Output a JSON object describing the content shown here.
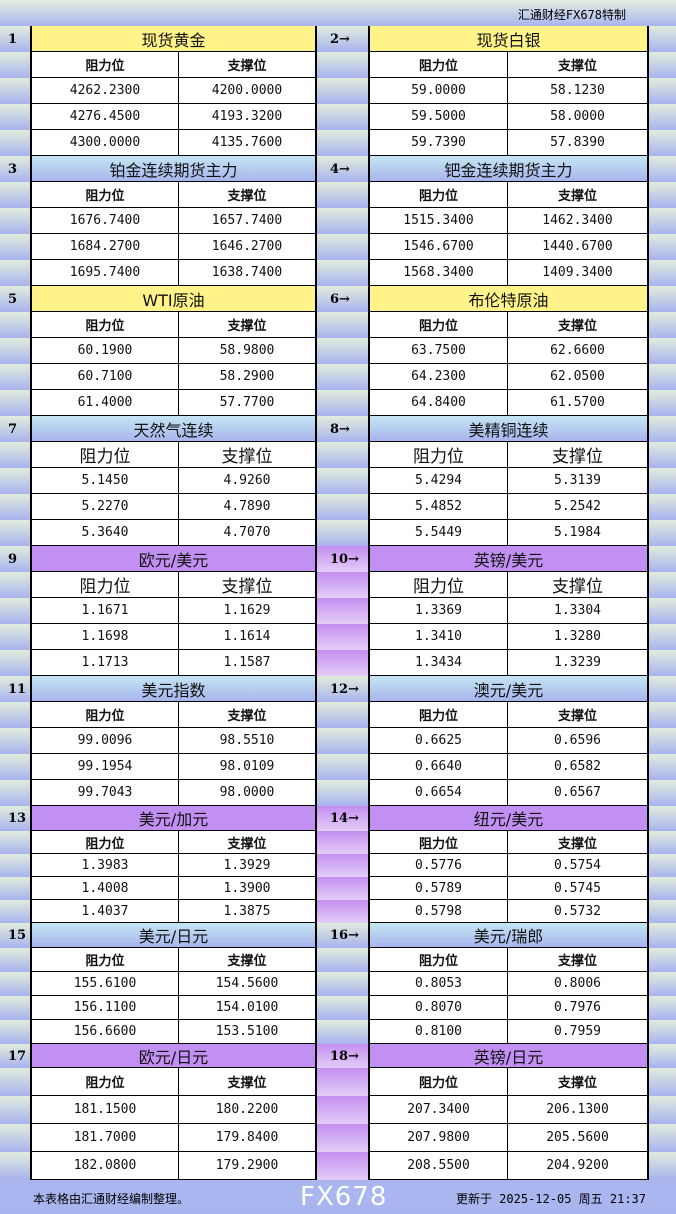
{
  "brand": "汇通财经FX678特制",
  "header_labels": {
    "resistance": "阻力位",
    "support": "支撑位"
  },
  "colors": {
    "yellow": "#fff38a",
    "blue_top": "#c4e6f2",
    "blue_bottom": "#a8b4ee",
    "purple": "#c190f2",
    "border": "#000000"
  },
  "sections": [
    {
      "num": "1",
      "title": "现货黄金",
      "rows": [
        [
          "4262.2300",
          "4200.0000"
        ],
        [
          "4276.4500",
          "4193.3200"
        ],
        [
          "4300.0000",
          "4135.7600"
        ]
      ]
    },
    {
      "num": "2→",
      "title": "现货白银",
      "rows": [
        [
          "59.0000",
          "58.1230"
        ],
        [
          "59.5000",
          "58.0000"
        ],
        [
          "59.7390",
          "57.8390"
        ]
      ]
    },
    {
      "num": "3",
      "title": "铂金连续期货主力",
      "rows": [
        [
          "1676.7400",
          "1657.7400"
        ],
        [
          "1684.2700",
          "1646.2700"
        ],
        [
          "1695.7400",
          "1638.7400"
        ]
      ]
    },
    {
      "num": "4→",
      "title": "钯金连续期货主力",
      "rows": [
        [
          "1515.3400",
          "1462.3400"
        ],
        [
          "1546.6700",
          "1440.6700"
        ],
        [
          "1568.3400",
          "1409.3400"
        ]
      ]
    },
    {
      "num": "5",
      "title": "WTI原油",
      "rows": [
        [
          "60.1900",
          "58.9800"
        ],
        [
          "60.7100",
          "58.2900"
        ],
        [
          "61.4000",
          "57.7700"
        ]
      ]
    },
    {
      "num": "6→",
      "title": "布伦特原油",
      "rows": [
        [
          "63.7500",
          "62.6600"
        ],
        [
          "64.2300",
          "62.0500"
        ],
        [
          "64.8400",
          "61.5700"
        ]
      ]
    },
    {
      "num": "7",
      "title": "天然气连续",
      "rows": [
        [
          "5.1450",
          "4.9260"
        ],
        [
          "5.2270",
          "4.7890"
        ],
        [
          "5.3640",
          "4.7070"
        ]
      ]
    },
    {
      "num": "8→",
      "title": "美精铜连续",
      "rows": [
        [
          "5.4294",
          "5.3139"
        ],
        [
          "5.4852",
          "5.2542"
        ],
        [
          "5.5449",
          "5.1984"
        ]
      ]
    },
    {
      "num": "9",
      "title": "欧元/美元",
      "rows": [
        [
          "1.1671",
          "1.1629"
        ],
        [
          "1.1698",
          "1.1614"
        ],
        [
          "1.1713",
          "1.1587"
        ]
      ]
    },
    {
      "num": "10→",
      "title": "英镑/美元",
      "rows": [
        [
          "1.3369",
          "1.3304"
        ],
        [
          "1.3410",
          "1.3280"
        ],
        [
          "1.3434",
          "1.3239"
        ]
      ]
    },
    {
      "num": "11",
      "title": "美元指数",
      "rows": [
        [
          "99.0096",
          "98.5510"
        ],
        [
          "99.1954",
          "98.0109"
        ],
        [
          "99.7043",
          "98.0000"
        ]
      ]
    },
    {
      "num": "12→",
      "title": "澳元/美元",
      "rows": [
        [
          "0.6625",
          "0.6596"
        ],
        [
          "0.6640",
          "0.6582"
        ],
        [
          "0.6654",
          "0.6567"
        ]
      ]
    },
    {
      "num": "13",
      "title": "美元/加元",
      "rows": [
        [
          "1.3983",
          "1.3929"
        ],
        [
          "1.4008",
          "1.3900"
        ],
        [
          "1.4037",
          "1.3875"
        ]
      ]
    },
    {
      "num": "14→",
      "title": "纽元/美元",
      "rows": [
        [
          "0.5776",
          "0.5754"
        ],
        [
          "0.5789",
          "0.5745"
        ],
        [
          "0.5798",
          "0.5732"
        ]
      ]
    },
    {
      "num": "15",
      "title": "美元/日元",
      "rows": [
        [
          "155.6100",
          "154.5600"
        ],
        [
          "156.1100",
          "154.0100"
        ],
        [
          "156.6600",
          "153.5100"
        ]
      ]
    },
    {
      "num": "16→",
      "title": "美元/瑞郎",
      "rows": [
        [
          "0.8053",
          "0.8006"
        ],
        [
          "0.8070",
          "0.7976"
        ],
        [
          "0.8100",
          "0.7959"
        ]
      ]
    },
    {
      "num": "17",
      "title": "欧元/日元",
      "rows": [
        [
          "181.1500",
          "180.2200"
        ],
        [
          "181.7000",
          "179.8400"
        ],
        [
          "182.0800",
          "179.2900"
        ]
      ]
    },
    {
      "num": "18→",
      "title": "英镑/日元",
      "rows": [
        [
          "207.3400",
          "206.1300"
        ],
        [
          "207.9800",
          "205.5600"
        ],
        [
          "208.5500",
          "204.9200"
        ]
      ]
    }
  ],
  "footer": {
    "note": "本表格由汇通财经编制整理。",
    "updated": "更新于 2025-12-05 周五 21:37"
  },
  "watermark": "FX678"
}
